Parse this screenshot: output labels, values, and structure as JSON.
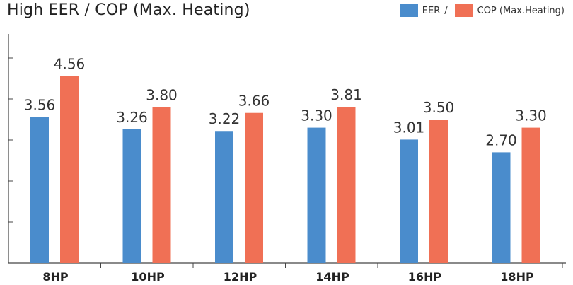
{
  "chart_data": {
    "type": "bar",
    "title": "High EER / COP (Max. Heating)",
    "categories": [
      "8HP",
      "10HP",
      "12HP",
      "14HP",
      "16HP",
      "18HP"
    ],
    "series": [
      {
        "name": "EER",
        "color": "#4a8ccc",
        "values": [
          3.56,
          3.26,
          3.22,
          3.3,
          3.01,
          2.7
        ]
      },
      {
        "name": "COP (Max.Heating)",
        "color": "#f07055",
        "values": [
          4.56,
          3.8,
          3.66,
          3.81,
          3.5,
          3.3
        ]
      }
    ],
    "value_labels": [
      [
        "3.56",
        "3.26",
        "3.22",
        "3.30",
        "3.01",
        "2.70"
      ],
      [
        "4.56",
        "3.80",
        "3.66",
        "3.81",
        "3.50",
        "3.30"
      ]
    ],
    "legend_separator": "/",
    "legend_position": "top-right",
    "ylim": [
      0,
      5.0
    ],
    "grid": false,
    "xlabel": "",
    "ylabel": ""
  }
}
